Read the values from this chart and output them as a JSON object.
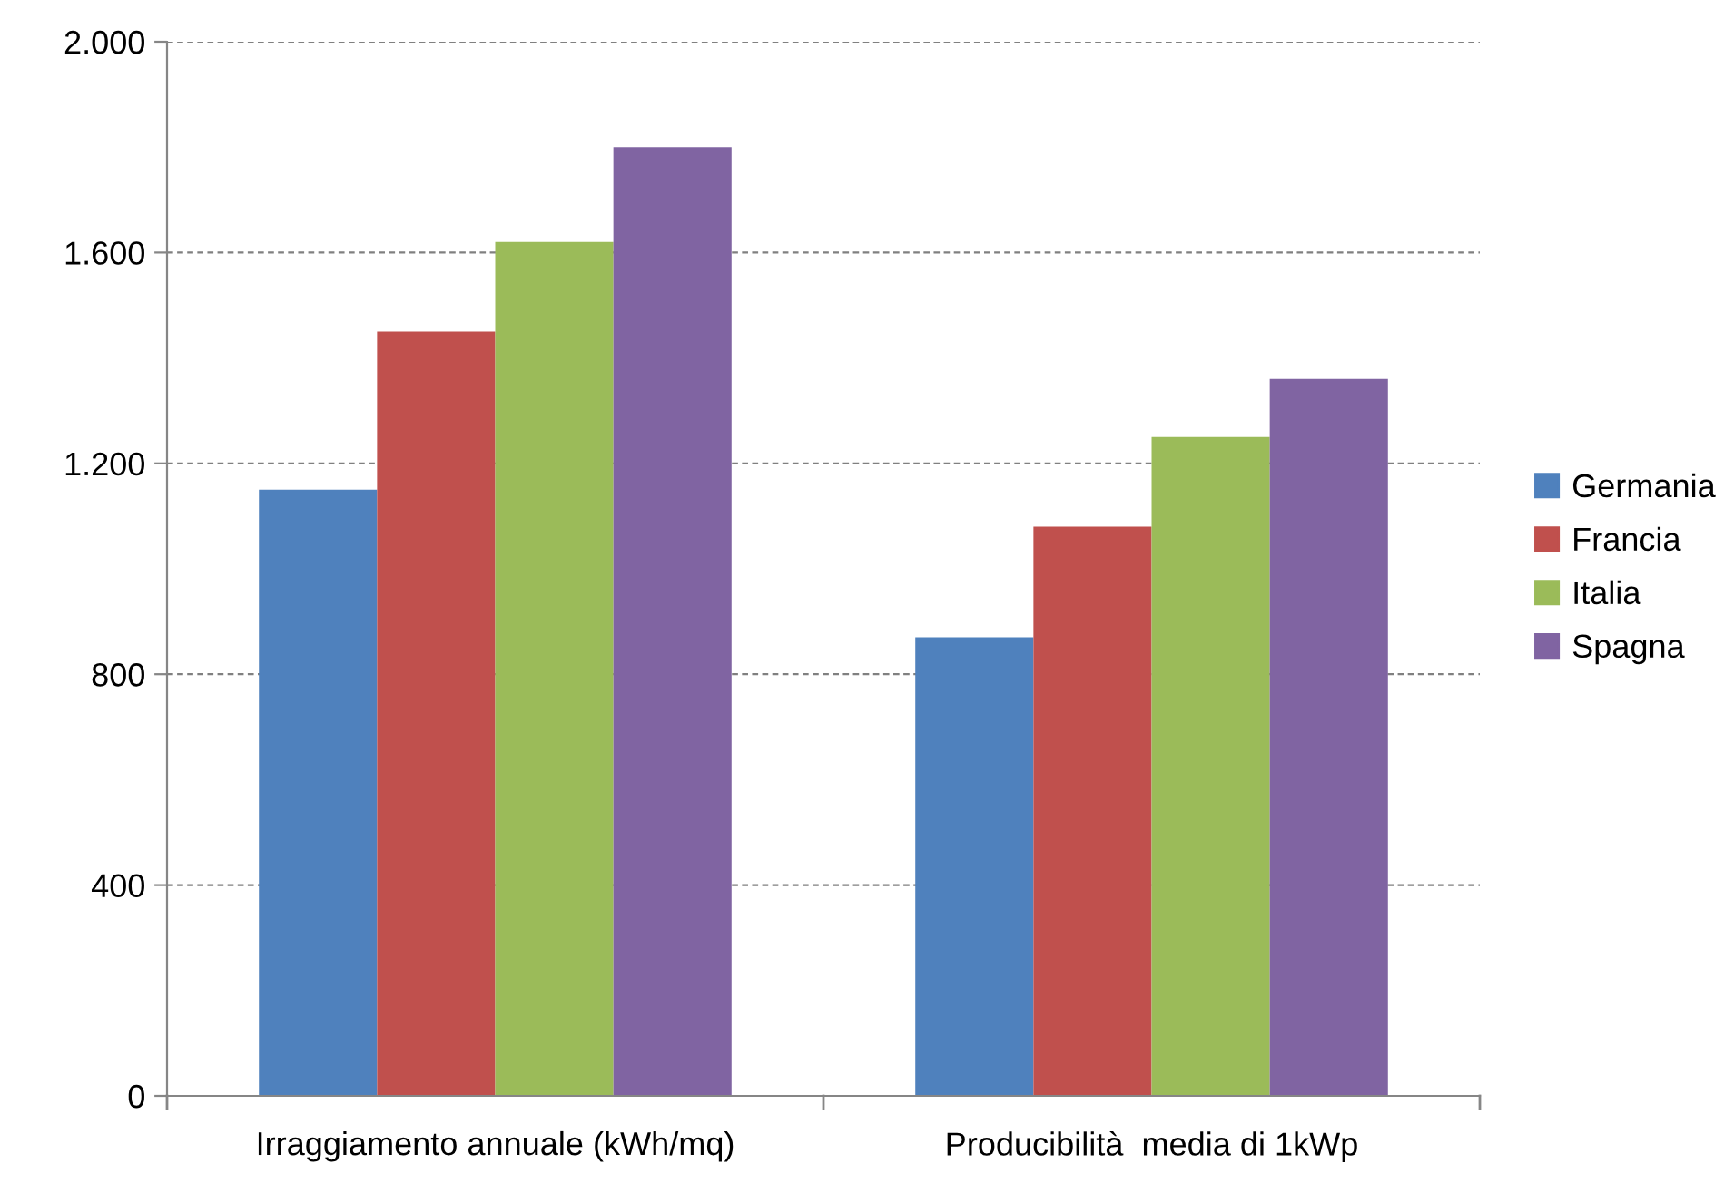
{
  "chart_data": {
    "type": "bar",
    "categories": [
      "Irraggiamento annuale (kWh/mq)",
      "Producibilità  media di 1kWp"
    ],
    "series": [
      {
        "name": "Germania",
        "color": "#4f81bd",
        "values": [
          1150,
          870
        ]
      },
      {
        "name": "Francia",
        "color": "#c0504d",
        "values": [
          1450,
          1080
        ]
      },
      {
        "name": "Italia",
        "color": "#9bbb59",
        "values": [
          1620,
          1250
        ]
      },
      {
        "name": "Spagna",
        "color": "#8064a2",
        "values": [
          1800,
          1360
        ]
      }
    ],
    "ylim": [
      0,
      2000
    ],
    "yticks": [
      0,
      {
        "value": 400,
        "label": "400"
      },
      {
        "value": 800,
        "label": "800"
      },
      {
        "value": 1200,
        "label": "1.200"
      },
      {
        "value": 1600,
        "label": "1.600"
      },
      {
        "value": 2000,
        "label": "2.000"
      }
    ],
    "grid": "y",
    "legend": "right"
  }
}
